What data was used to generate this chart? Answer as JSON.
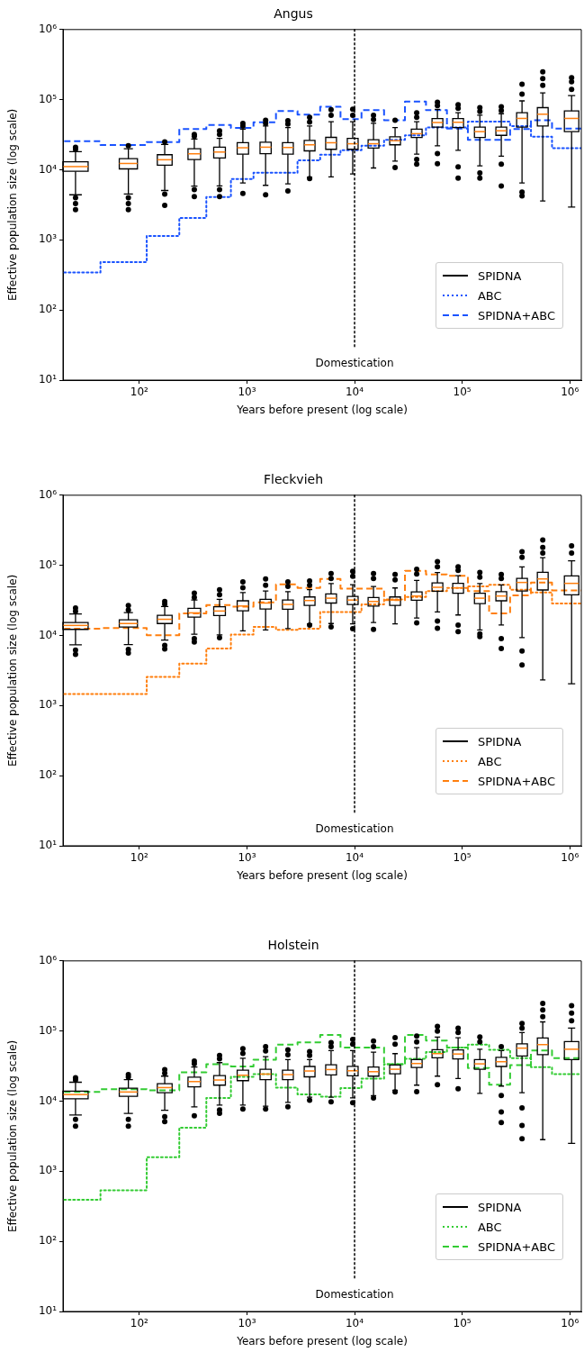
{
  "chart_data": [
    {
      "type": "box",
      "title": "Angus",
      "xlabel": "Years before present (log scale)",
      "ylabel": "Effective population size (log scale)",
      "log": "xy",
      "legend": "bottom right",
      "xlim": [
        19.5,
        1280000
      ],
      "ylim": [
        10,
        1000000
      ],
      "xticks": [
        {
          "value": 100,
          "label": "10²"
        },
        {
          "value": 1000,
          "label": "10³"
        },
        {
          "value": 10000,
          "label": "10⁴"
        },
        {
          "value": 100000,
          "label": "10⁵"
        },
        {
          "value": 1000000,
          "label": "10⁶"
        }
      ],
      "yticks": [
        {
          "value": 10,
          "label": "10¹"
        },
        {
          "value": 100,
          "label": "10²"
        },
        {
          "value": 1000,
          "label": "10³"
        },
        {
          "value": 10000,
          "label": "10⁴"
        },
        {
          "value": 100000,
          "label": "10⁵"
        },
        {
          "value": 1000000,
          "label": "10⁶"
        }
      ],
      "ref_lines": [
        {
          "axis": "x",
          "value": 10000,
          "label": "Domestication",
          "color": "#000000",
          "line_style": "dotted"
        }
      ],
      "series": [
        {
          "name": "SPIDNA",
          "type": "box",
          "color": "#000000",
          "x": [
            25.5,
            79,
            172,
            324,
            556,
            916,
            1490,
            2400,
            3820,
            6050,
            9610,
            15000,
            23800,
            37800,
            58900,
            91700,
            146000,
            231000,
            360000,
            561000,
            1040000
          ],
          "boxes": [
            {
              "low": 4400,
              "q1": 9500,
              "median": 11100,
              "q3": 13000,
              "high": 18100,
              "outliers": [
                21000,
                19500,
                4000,
                3300,
                2700
              ]
            },
            {
              "low": 4500,
              "q1": 10300,
              "median": 12300,
              "q3": 14400,
              "high": 20000,
              "outliers": [
                22000,
                4000,
                3300,
                2700
              ]
            },
            {
              "low": 5060,
              "q1": 11600,
              "median": 13900,
              "q3": 16400,
              "high": 23000,
              "outliers": [
                25000,
                4500,
                3100
              ]
            },
            {
              "low": 5860,
              "q1": 14000,
              "median": 16900,
              "q3": 20000,
              "high": 27400,
              "outliers": [
                32000,
                30000,
                5200,
                4150
              ]
            },
            {
              "low": 5900,
              "q1": 14700,
              "median": 17900,
              "q3": 21000,
              "high": 28000,
              "outliers": [
                36000,
                32000,
                5200,
                4150
              ]
            },
            {
              "low": 6470,
              "q1": 16700,
              "median": 20600,
              "q3": 24300,
              "high": 38000,
              "outliers": [
                46000,
                42000,
                4600
              ]
            },
            {
              "low": 6000,
              "q1": 17000,
              "median": 21000,
              "q3": 24800,
              "high": 42000,
              "outliers": [
                51000,
                46000,
                4400
              ]
            },
            {
              "low": 6300,
              "q1": 16700,
              "median": 20800,
              "q3": 24300,
              "high": 40000,
              "outliers": [
                50000,
                45000,
                5000
              ]
            },
            {
              "low": 7870,
              "q1": 18600,
              "median": 22700,
              "q3": 26300,
              "high": 42000,
              "outliers": [
                56000,
                48000,
                7500
              ]
            },
            {
              "low": 7900,
              "q1": 19600,
              "median": 24300,
              "q3": 29000,
              "high": 48500,
              "outliers": [
                72000,
                60000
              ]
            },
            {
              "low": 8700,
              "q1": 19600,
              "median": 23500,
              "q3": 28000,
              "high": 48500,
              "outliers": [
                73000,
                60000
              ]
            },
            {
              "low": 10600,
              "q1": 20400,
              "median": 23500,
              "q3": 26800,
              "high": 46000,
              "outliers": [
                60000,
                52000
              ]
            },
            {
              "low": 13300,
              "q1": 22700,
              "median": 26000,
              "q3": 29600,
              "high": 40000,
              "outliers": [
                51000,
                10800
              ]
            },
            {
              "low": 16700,
              "q1": 28800,
              "median": 32700,
              "q3": 38000,
              "high": 48500,
              "outliers": [
                65000,
                56000,
                14000,
                12000
              ]
            },
            {
              "low": 22000,
              "q1": 40700,
              "median": 47200,
              "q3": 53700,
              "high": 73000,
              "outliers": [
                92000,
                82000,
                17000,
                12200
              ]
            },
            {
              "low": 19000,
              "q1": 40000,
              "median": 47600,
              "q3": 53700,
              "high": 65000,
              "outliers": [
                84500,
                75000,
                11000,
                7600
              ]
            },
            {
              "low": 11400,
              "q1": 28800,
              "median": 35000,
              "q3": 40700,
              "high": 60000,
              "outliers": [
                77000,
                68000,
                9000,
                7600
              ]
            },
            {
              "low": 15600,
              "q1": 31000,
              "median": 36000,
              "q3": 40700,
              "high": 63000,
              "outliers": [
                79000,
                70000,
                12000,
                5870
              ]
            },
            {
              "low": 6470,
              "q1": 40700,
              "median": 54000,
              "q3": 65000,
              "high": 96000,
              "outliers": [
                166000,
                120000,
                4800,
                4250
              ]
            },
            {
              "low": 3580,
              "q1": 42000,
              "median": 62000,
              "q3": 77000,
              "high": 125000,
              "outliers": [
                250000,
                200000,
                160000
              ]
            },
            {
              "low": 2940,
              "q1": 35000,
              "median": 54000,
              "q3": 69000,
              "high": 114000,
              "outliers": [
                206000,
                180000,
                140000
              ]
            }
          ]
        },
        {
          "name": "ABC",
          "type": "step",
          "color": "#1a53ff",
          "line_style": "dotted",
          "x": [
            20,
            43.5,
            117,
            235,
            419,
            709,
            1150,
            1860,
            2950,
            4790,
            7400,
            11600,
            18800,
            29400,
            46100,
            72200,
            113000,
            178000,
            279000,
            436000,
            684000,
            1280000
          ],
          "values": [
            344,
            482,
            1140,
            2060,
            4070,
            7370,
            9060,
            9060,
            13600,
            16400,
            19000,
            22000,
            26800,
            31000,
            40000,
            40000,
            48500,
            48500,
            42000,
            29600,
            20400,
            20400
          ]
        },
        {
          "name": "SPIDNA+ABC",
          "type": "step",
          "color": "#1a53ff",
          "line_style": "dashed",
          "x": [
            20,
            43.5,
            117,
            235,
            419,
            709,
            1150,
            1860,
            2950,
            4790,
            7400,
            11600,
            18800,
            29400,
            46100,
            72200,
            113000,
            178000,
            279000,
            436000,
            684000,
            1280000
          ],
          "values": [
            25600,
            22500,
            24800,
            38000,
            43600,
            39500,
            47700,
            68700,
            61000,
            79500,
            52600,
            70700,
            51000,
            94000,
            70700,
            38700,
            26800,
            26800,
            38000,
            51000,
            38700,
            38700
          ]
        }
      ]
    },
    {
      "type": "box",
      "title": "Fleckvieh",
      "xlabel": "Years before present (log scale)",
      "ylabel": "Effective population size (log scale)",
      "log": "xy",
      "legend": "bottom right",
      "xlim": [
        19.5,
        1280000
      ],
      "ylim": [
        10,
        1000000
      ],
      "xticks": [
        {
          "value": 100,
          "label": "10²"
        },
        {
          "value": 1000,
          "label": "10³"
        },
        {
          "value": 10000,
          "label": "10⁴"
        },
        {
          "value": 100000,
          "label": "10⁵"
        },
        {
          "value": 1000000,
          "label": "10⁶"
        }
      ],
      "yticks": [
        {
          "value": 10,
          "label": "10¹"
        },
        {
          "value": 100,
          "label": "10²"
        },
        {
          "value": 1000,
          "label": "10³"
        },
        {
          "value": 10000,
          "label": "10⁴"
        },
        {
          "value": 100000,
          "label": "10⁵"
        },
        {
          "value": 1000000,
          "label": "10⁶"
        }
      ],
      "ref_lines": [
        {
          "axis": "x",
          "value": 10000,
          "label": "Domestication",
          "color": "#000000",
          "line_style": "dotted"
        }
      ],
      "series": [
        {
          "name": "SPIDNA",
          "type": "box",
          "color": "#000000",
          "x": [
            25.5,
            79,
            172,
            324,
            556,
            916,
            1490,
            2400,
            3820,
            6050,
            9610,
            15000,
            23800,
            37800,
            58900,
            91700,
            146000,
            231000,
            360000,
            561000,
            1040000
          ],
          "boxes": [
            {
              "low": 7370,
              "q1": 12200,
              "median": 13900,
              "q3": 15300,
              "high": 20200,
              "outliers": [
                24600,
                22000,
                6200,
                5360
              ]
            },
            {
              "low": 7400,
              "q1": 13200,
              "median": 14800,
              "q3": 16700,
              "high": 21200,
              "outliers": [
                26800,
                23000,
                6300,
                5600
              ]
            },
            {
              "low": 8600,
              "q1": 14800,
              "median": 17000,
              "q3": 19400,
              "high": 25800,
              "outliers": [
                30500,
                28000,
                7200,
                6400
              ]
            },
            {
              "low": 10400,
              "q1": 18300,
              "median": 21000,
              "q3": 24300,
              "high": 32000,
              "outliers": [
                40000,
                35000,
                9000,
                8050
              ]
            },
            {
              "low": 10200,
              "q1": 19200,
              "median": 22300,
              "q3": 25600,
              "high": 32700,
              "outliers": [
                45000,
                38000,
                9300
              ]
            },
            {
              "low": 11600,
              "q1": 22500,
              "median": 26300,
              "q3": 31200,
              "high": 41000,
              "outliers": [
                58000,
                48000
              ]
            },
            {
              "low": 12000,
              "q1": 23900,
              "median": 29000,
              "q3": 32700,
              "high": 43000,
              "outliers": [
                64000,
                52000
              ]
            },
            {
              "low": 12500,
              "q1": 23600,
              "median": 27700,
              "q3": 32000,
              "high": 42000,
              "outliers": [
                58000,
                50000
              ]
            },
            {
              "low": 14600,
              "q1": 26900,
              "median": 31500,
              "q3": 35400,
              "high": 45000,
              "outliers": [
                60000,
                52000,
                14000
              ]
            },
            {
              "low": 14800,
              "q1": 29000,
              "median": 34000,
              "q3": 39000,
              "high": 55000,
              "outliers": [
                76500,
                65000,
                13200
              ]
            },
            {
              "low": 14600,
              "q1": 27700,
              "median": 32000,
              "q3": 36000,
              "high": 53000,
              "outliers": [
                82000,
                70000,
                12500
              ]
            },
            {
              "low": 15300,
              "q1": 26300,
              "median": 30500,
              "q3": 34700,
              "high": 50000,
              "outliers": [
                76500,
                65000,
                12200
              ]
            },
            {
              "low": 14600,
              "q1": 26900,
              "median": 32000,
              "q3": 35400,
              "high": 47600,
              "outliers": [
                74000,
                62000
              ]
            },
            {
              "low": 17700,
              "q1": 31800,
              "median": 36500,
              "q3": 41900,
              "high": 61000,
              "outliers": [
                88000,
                75000,
                15100
              ]
            },
            {
              "low": 21600,
              "q1": 42700,
              "median": 48600,
              "q3": 56300,
              "high": 79000,
              "outliers": [
                113000,
                95000,
                16000,
                12700
              ]
            },
            {
              "low": 19600,
              "q1": 39900,
              "median": 47700,
              "q3": 55300,
              "high": 71000,
              "outliers": [
                95000,
                85000,
                14000,
                11300
              ]
            },
            {
              "low": 12000,
              "q1": 28500,
              "median": 34000,
              "q3": 40000,
              "high": 55000,
              "outliers": [
                79000,
                68000,
                10500,
                9600
              ]
            },
            {
              "low": 14100,
              "q1": 31200,
              "median": 36500,
              "q3": 42000,
              "high": 52600,
              "outliers": [
                74000,
                65000,
                9000,
                6500
              ]
            },
            {
              "low": 9300,
              "q1": 43000,
              "median": 57000,
              "q3": 65000,
              "high": 95000,
              "outliers": [
                156000,
                130000,
                6000,
                3800
              ]
            },
            {
              "low": 2320,
              "q1": 44500,
              "median": 64000,
              "q3": 79500,
              "high": 129000,
              "outliers": [
                230000,
                180000,
                150000
              ]
            },
            {
              "low": 2040,
              "q1": 38000,
              "median": 55300,
              "q3": 70700,
              "high": 116000,
              "outliers": [
                190000,
                150000
              ]
            }
          ]
        },
        {
          "name": "ABC",
          "type": "step",
          "color": "#ff7f0e",
          "line_style": "dotted",
          "x": [
            20,
            43.5,
            117,
            235,
            419,
            709,
            1150,
            1860,
            2950,
            4790,
            7400,
            11600,
            18800,
            29400,
            46100,
            72200,
            113000,
            178000,
            279000,
            436000,
            684000,
            1280000
          ],
          "values": [
            1460,
            1460,
            2560,
            3980,
            6500,
            10300,
            13200,
            12000,
            12500,
            21600,
            21600,
            27700,
            32700,
            35400,
            43000,
            47700,
            50000,
            52600,
            45000,
            41000,
            28500,
            28500
          ]
        },
        {
          "name": "SPIDNA+ABC",
          "type": "step",
          "color": "#ff7f0e",
          "line_style": "dashed",
          "x": [
            20,
            43.5,
            117,
            235,
            419,
            709,
            1150,
            1860,
            2950,
            4790,
            7400,
            11600,
            18800,
            29400,
            46100,
            72200,
            113000,
            178000,
            279000,
            436000,
            684000,
            1280000
          ],
          "values": [
            12500,
            12800,
            10100,
            20600,
            27100,
            25800,
            29700,
            53700,
            47700,
            64000,
            46700,
            46700,
            32000,
            83600,
            74300,
            70700,
            43000,
            20600,
            37200,
            57000,
            44000,
            44000
          ]
        }
      ]
    },
    {
      "type": "box",
      "title": "Holstein",
      "xlabel": "Years before present (log scale)",
      "ylabel": "Effective population size (log scale)",
      "log": "xy",
      "legend": "bottom right",
      "xlim": [
        19.5,
        1280000
      ],
      "ylim": [
        10,
        1000000
      ],
      "xticks": [
        {
          "value": 100,
          "label": "10²"
        },
        {
          "value": 1000,
          "label": "10³"
        },
        {
          "value": 10000,
          "label": "10⁴"
        },
        {
          "value": 100000,
          "label": "10⁵"
        },
        {
          "value": 1000000,
          "label": "10⁶"
        }
      ],
      "yticks": [
        {
          "value": 10,
          "label": "10¹"
        },
        {
          "value": 100,
          "label": "10²"
        },
        {
          "value": 1000,
          "label": "10³"
        },
        {
          "value": 10000,
          "label": "10⁴"
        },
        {
          "value": 100000,
          "label": "10⁵"
        },
        {
          "value": 1000000,
          "label": "10⁶"
        }
      ],
      "ref_lines": [
        {
          "axis": "x",
          "value": 10000,
          "label": "Domestication",
          "color": "#000000",
          "line_style": "dotted"
        }
      ],
      "series": [
        {
          "name": "SPIDNA",
          "type": "box",
          "color": "#000000",
          "x": [
            25.5,
            79,
            172,
            324,
            556,
            916,
            1490,
            2400,
            3820,
            6050,
            9610,
            15000,
            23800,
            37800,
            58900,
            91700,
            146000,
            231000,
            360000,
            561000,
            1040000
          ],
          "boxes": [
            {
              "low": 6350,
              "q1": 10800,
              "median": 12400,
              "q3": 13900,
              "high": 18600,
              "outliers": [
                21600,
                20000,
                5500,
                4400
              ]
            },
            {
              "low": 6670,
              "q1": 11700,
              "median": 13500,
              "q3": 15300,
              "high": 20200,
              "outliers": [
                23900,
                22000,
                5500,
                4400
              ]
            },
            {
              "low": 7400,
              "q1": 13200,
              "median": 15600,
              "q3": 17700,
              "high": 22700,
              "outliers": [
                28200,
                25000,
                6000,
                5100
              ]
            },
            {
              "low": 8300,
              "q1": 16000,
              "median": 19000,
              "q3": 22000,
              "high": 30600,
              "outliers": [
                37200,
                34000,
                6200
              ]
            },
            {
              "low": 8800,
              "q1": 16900,
              "median": 20000,
              "q3": 23200,
              "high": 35400,
              "outliers": [
                45000,
                40000,
                7500,
                6700
              ]
            },
            {
              "low": 8800,
              "q1": 19600,
              "median": 23400,
              "q3": 27700,
              "high": 41000,
              "outliers": [
                56000,
                48000,
                7700
              ]
            },
            {
              "low": 8450,
              "q1": 20200,
              "median": 24300,
              "q3": 28500,
              "high": 43000,
              "outliers": [
                60000,
                52000,
                7700
              ]
            },
            {
              "low": 9600,
              "q1": 20200,
              "median": 23900,
              "q3": 27700,
              "high": 39000,
              "outliers": [
                54000,
                46000,
                8300
              ]
            },
            {
              "low": 11400,
              "q1": 22200,
              "median": 26900,
              "q3": 31200,
              "high": 39000,
              "outliers": [
                51000,
                45000,
                10300
              ]
            },
            {
              "low": 11400,
              "q1": 23600,
              "median": 28200,
              "q3": 33000,
              "high": 52600,
              "outliers": [
                68600,
                60000,
                9800
              ]
            },
            {
              "low": 11100,
              "q1": 22900,
              "median": 27100,
              "q3": 31400,
              "high": 52600,
              "outliers": [
                76000,
                65000,
                9500
              ]
            },
            {
              "low": 12000,
              "q1": 22700,
              "median": 26300,
              "q3": 30600,
              "high": 50000,
              "outliers": [
                72000,
                60000,
                11100
              ]
            },
            {
              "low": 14300,
              "q1": 24600,
              "median": 28500,
              "q3": 32700,
              "high": 47600,
              "outliers": [
                80600,
                65000,
                13500
              ]
            },
            {
              "low": 16900,
              "q1": 30200,
              "median": 34400,
              "q3": 39000,
              "high": 58000,
              "outliers": [
                85000,
                70000,
                13600
              ]
            },
            {
              "low": 22700,
              "q1": 41500,
              "median": 47600,
              "q3": 54000,
              "high": 82000,
              "outliers": [
                116000,
                100000,
                17200
              ]
            },
            {
              "low": 21000,
              "q1": 40000,
              "median": 47000,
              "q3": 53700,
              "high": 80000,
              "outliers": [
                110000,
                95000,
                15000
              ]
            },
            {
              "low": 12900,
              "q1": 28500,
              "median": 34000,
              "q3": 39000,
              "high": 55000,
              "outliers": [
                82000,
                70000
              ]
            },
            {
              "low": 16400,
              "q1": 31200,
              "median": 36500,
              "q3": 42000,
              "high": 52600,
              "outliers": [
                60000,
                12000,
                7000,
                4960
              ]
            },
            {
              "low": 13200,
              "q1": 44000,
              "median": 57000,
              "q3": 65500,
              "high": 95000,
              "outliers": [
                128000,
                110000,
                8000,
                4500,
                2900
              ]
            },
            {
              "low": 2820,
              "q1": 46000,
              "median": 64000,
              "q3": 79700,
              "high": 135000,
              "outliers": [
                248000,
                200000,
                160000
              ]
            },
            {
              "low": 2500,
              "q1": 39000,
              "median": 55000,
              "q3": 70700,
              "high": 110000,
              "outliers": [
                230000,
                180000,
                140000
              ]
            }
          ]
        },
        {
          "name": "ABC",
          "type": "step",
          "color": "#33cc33",
          "line_style": "dotted",
          "x": [
            20,
            43.5,
            117,
            235,
            419,
            709,
            1150,
            1860,
            2950,
            4790,
            7400,
            11600,
            18800,
            29400,
            46100,
            72200,
            113000,
            178000,
            279000,
            436000,
            684000,
            1280000
          ],
          "values": [
            391,
            536,
            1590,
            4190,
            11100,
            22200,
            24300,
            15600,
            12500,
            11600,
            15300,
            21000,
            33700,
            40000,
            50000,
            58000,
            64000,
            54000,
            41000,
            30600,
            24300,
            24300
          ]
        },
        {
          "name": "SPIDNA+ABC",
          "type": "step",
          "color": "#33cc33",
          "line_style": "dashed",
          "x": [
            20,
            43.5,
            117,
            235,
            419,
            709,
            1150,
            1860,
            2950,
            4790,
            7400,
            11600,
            18800,
            29400,
            46100,
            72200,
            113000,
            178000,
            279000,
            436000,
            684000,
            1280000
          ],
          "values": [
            13500,
            14800,
            14300,
            25800,
            33700,
            31200,
            39000,
            64000,
            69000,
            88000,
            58000,
            58000,
            33700,
            88000,
            73000,
            58000,
            29700,
            17200,
            32700,
            52600,
            41000,
            41000
          ]
        }
      ]
    }
  ]
}
